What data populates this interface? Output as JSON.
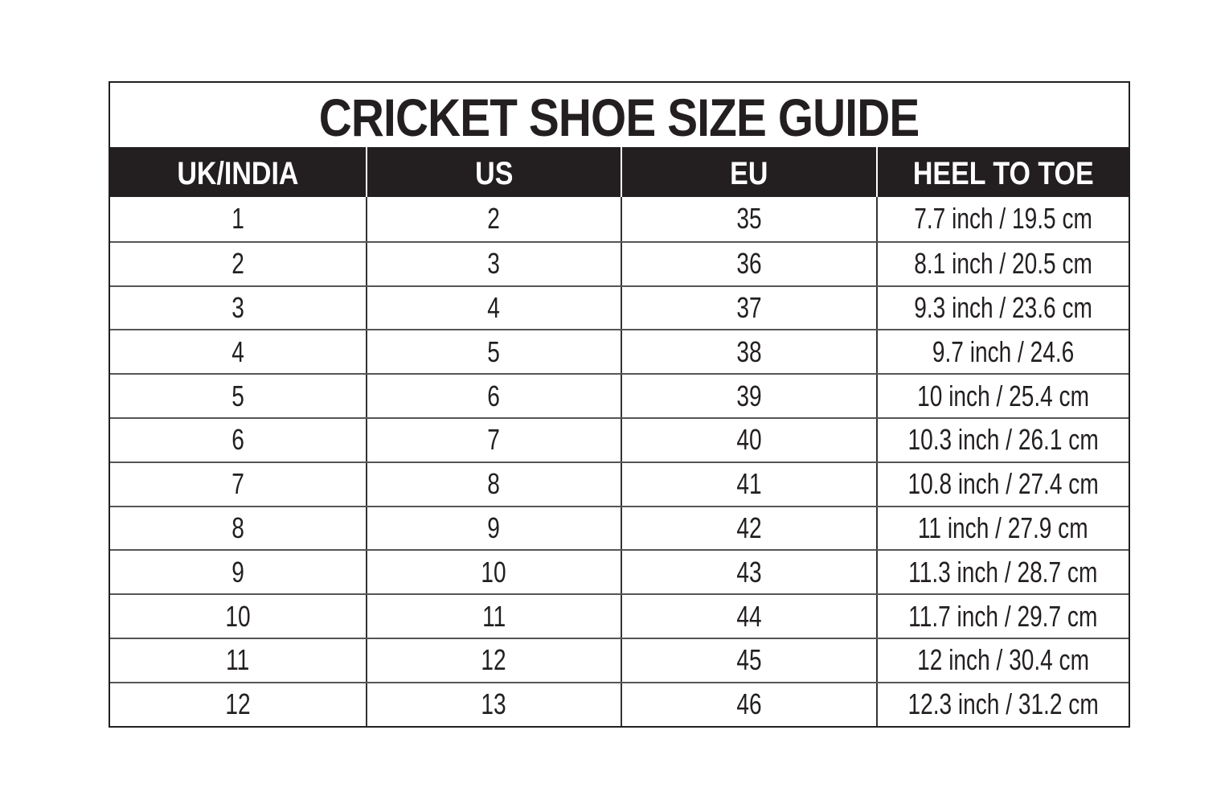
{
  "title": "CRICKET SHOE SIZE GUIDE",
  "columns": [
    "UK/INDIA",
    "US",
    "EU",
    "HEEL TO TOE"
  ],
  "rows": [
    [
      "1",
      "2",
      "35",
      "7.7 inch / 19.5 cm"
    ],
    [
      "2",
      "3",
      "36",
      "8.1 inch / 20.5 cm"
    ],
    [
      "3",
      "4",
      "37",
      "9.3 inch / 23.6 cm"
    ],
    [
      "4",
      "5",
      "38",
      "9.7 inch / 24.6"
    ],
    [
      "5",
      "6",
      "39",
      "10 inch / 25.4 cm"
    ],
    [
      "6",
      "7",
      "40",
      "10.3 inch / 26.1 cm"
    ],
    [
      "7",
      "8",
      "41",
      "10.8 inch / 27.4 cm"
    ],
    [
      "8",
      "9",
      "42",
      "11 inch / 27.9 cm"
    ],
    [
      "9",
      "10",
      "43",
      "11.3 inch / 28.7 cm"
    ],
    [
      "10",
      "11",
      "44",
      "11.7 inch / 29.7 cm"
    ],
    [
      "11",
      "12",
      "45",
      "12 inch / 30.4 cm"
    ],
    [
      "12",
      "13",
      "46",
      "12.3 inch / 31.2 cm"
    ]
  ],
  "colors": {
    "header_bg": "#231f20",
    "header_text": "#ffffff",
    "text": "#231f20"
  }
}
